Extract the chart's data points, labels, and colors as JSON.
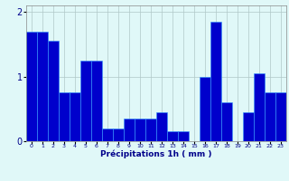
{
  "hours": [
    0,
    1,
    2,
    3,
    4,
    5,
    6,
    7,
    8,
    9,
    10,
    11,
    12,
    13,
    14,
    15,
    16,
    17,
    18,
    19,
    20,
    21,
    22,
    23
  ],
  "values": [
    1.7,
    1.7,
    1.55,
    0.75,
    0.75,
    1.25,
    1.25,
    0.2,
    0.2,
    0.35,
    0.35,
    0.35,
    0.45,
    0.15,
    0.15,
    0.0,
    1.0,
    1.85,
    0.6,
    0.0,
    0.45,
    1.05,
    0.75,
    0.75
  ],
  "bar_color": "#0000cc",
  "bar_edge_color": "#3399ff",
  "bg_color": "#e0f8f8",
  "grid_color": "#b0c8c8",
  "xlabel": "Précipitations 1h ( mm )",
  "xlabel_color": "#00008b",
  "tick_color": "#00008b",
  "yticks": [
    0,
    1,
    2
  ],
  "ylim": [
    0,
    2.1
  ],
  "xlim": [
    -0.5,
    23.5
  ],
  "figsize": [
    3.2,
    2.0
  ],
  "dpi": 100
}
